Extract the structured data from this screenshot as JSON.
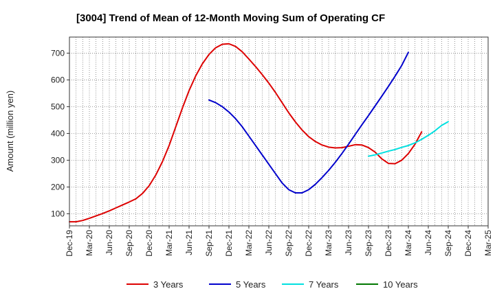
{
  "chart_data": {
    "type": "line",
    "title": "[3004]  Trend of Mean of 12-Month Moving Sum of Operating CF",
    "xlabel": "",
    "ylabel": "Amount (million yen)",
    "ylim": [
      55,
      760
    ],
    "yticks": [
      100,
      200,
      300,
      400,
      500,
      600,
      700
    ],
    "grid": true,
    "legend_position": "bottom",
    "x_start": "Dec-19",
    "x_end": "Mar-25",
    "xtick_labels": [
      "Dec-19",
      "Mar-20",
      "Jun-20",
      "Sep-20",
      "Dec-20",
      "Mar-21",
      "Jun-21",
      "Sep-21",
      "Dec-21",
      "Mar-22",
      "Jun-22",
      "Sep-22",
      "Dec-22",
      "Mar-23",
      "Jun-23",
      "Sep-23",
      "Dec-23",
      "Mar-24",
      "Jun-24",
      "Sep-24",
      "Dec-24",
      "Mar-25"
    ],
    "series": [
      {
        "name": "3 Years",
        "color": "#dd0000",
        "start_month_index": 0,
        "values": [
          70,
          70,
          75,
          83,
          92,
          101,
          111,
          122,
          133,
          144,
          156,
          176,
          205,
          245,
          295,
          355,
          425,
          495,
          560,
          615,
          660,
          695,
          720,
          733,
          735,
          725,
          705,
          678,
          650,
          620,
          588,
          553,
          515,
          477,
          443,
          413,
          388,
          370,
          357,
          349,
          346,
          347,
          352,
          358,
          357,
          347,
          330,
          305,
          288,
          287,
          300,
          325,
          360,
          406
        ]
      },
      {
        "name": "5 Years",
        "color": "#0000cc",
        "start_month_index": 21,
        "values": [
          525,
          515,
          500,
          480,
          455,
          425,
          390,
          355,
          320,
          285,
          250,
          215,
          190,
          178,
          178,
          190,
          210,
          235,
          262,
          292,
          325,
          360,
          396,
          432,
          467,
          503,
          539,
          576,
          614,
          654,
          703
        ]
      },
      {
        "name": "7 Years",
        "color": "#00e0e0",
        "start_month_index": 45,
        "values": [
          315,
          320,
          327,
          334,
          340,
          348,
          355,
          365,
          378,
          393,
          410,
          430,
          444
        ]
      },
      {
        "name": "10 Years",
        "color": "#007700",
        "start_month_index": null,
        "values": []
      }
    ]
  }
}
